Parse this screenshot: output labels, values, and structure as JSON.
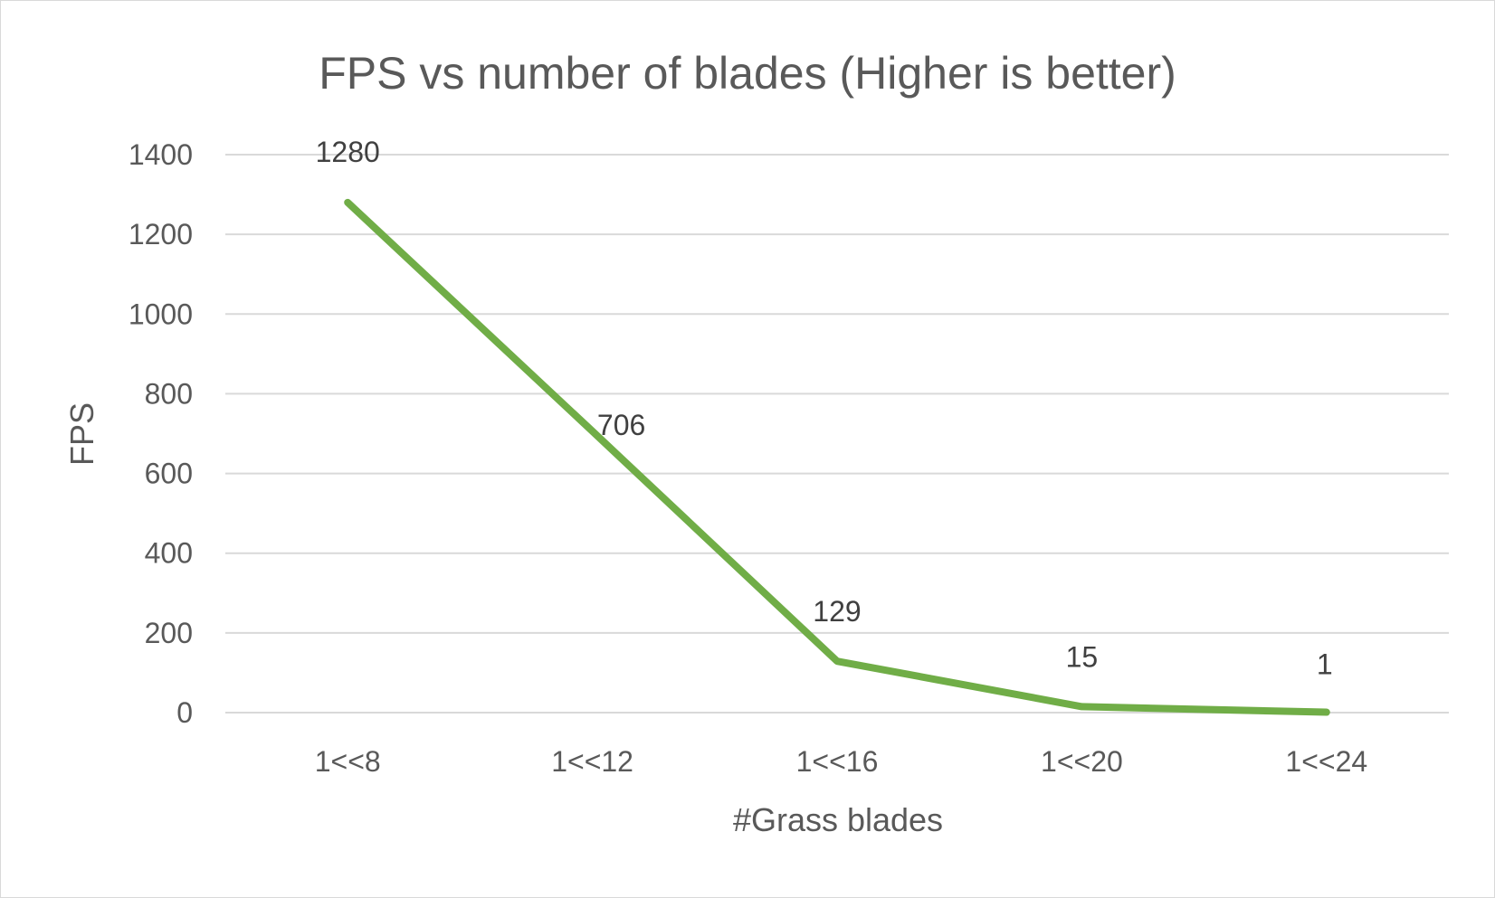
{
  "chart_data": {
    "type": "line",
    "title": "FPS vs number of blades (Higher is better)",
    "xlabel": "#Grass blades",
    "ylabel": "FPS",
    "categories": [
      "1<<8",
      "1<<12",
      "1<<16",
      "1<<20",
      "1<<24"
    ],
    "series": [
      {
        "values": [
          1280,
          706,
          129,
          15,
          1
        ],
        "color": "#70ad47"
      }
    ],
    "data_labels": [
      "1280",
      "706",
      "129",
      "15",
      "1"
    ],
    "ylim": [
      0,
      1400
    ],
    "yticks": [
      0,
      200,
      400,
      600,
      800,
      1000,
      1200,
      1400
    ],
    "grid": true,
    "legend": "none"
  }
}
